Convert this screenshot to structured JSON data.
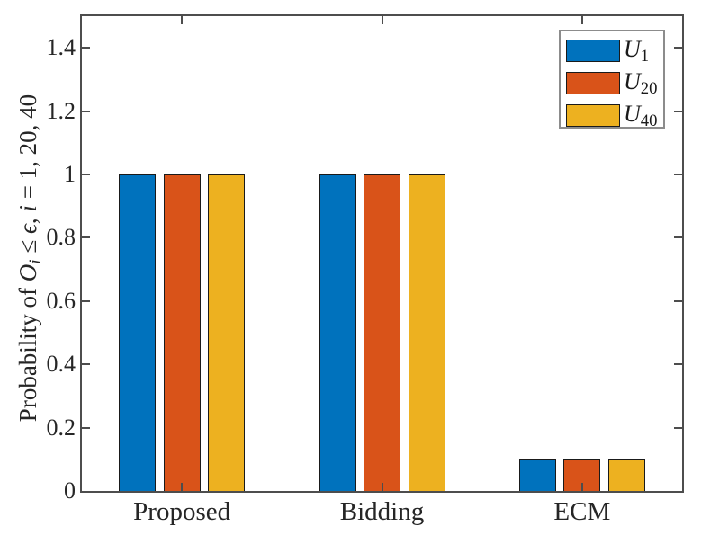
{
  "chart_data": {
    "type": "bar",
    "title": "",
    "categories": [
      "Proposed",
      "Bidding",
      "ECM"
    ],
    "series": [
      {
        "name": "U",
        "sub": "1",
        "color": "#0072BD",
        "values": [
          1,
          1,
          0.1
        ]
      },
      {
        "name": "U",
        "sub": "20",
        "color": "#D95319",
        "values": [
          1,
          1,
          0.1
        ]
      },
      {
        "name": "U",
        "sub": "40",
        "color": "#EDB120",
        "values": [
          1,
          1,
          0.1
        ]
      }
    ],
    "xlabel": "",
    "ylabel_parts": [
      {
        "t": "Probability of ",
        "i": false
      },
      {
        "t": "O",
        "i": true
      },
      {
        "t": "i",
        "i": true,
        "sub": true
      },
      {
        "t": " ≤ ",
        "i": false
      },
      {
        "t": "ϵ",
        "i": true
      },
      {
        "t": ", ",
        "i": false
      },
      {
        "t": "i",
        "i": true
      },
      {
        "t": " = 1, 20, 40",
        "i": false
      }
    ],
    "ylim": [
      0,
      1.5
    ],
    "yticks": [
      {
        "v": 0,
        "label": "0"
      },
      {
        "v": 0.2,
        "label": "0.2"
      },
      {
        "v": 0.4,
        "label": "0.4"
      },
      {
        "v": 0.6,
        "label": "0.6"
      },
      {
        "v": 0.8,
        "label": "0.8"
      },
      {
        "v": 1,
        "label": "1"
      },
      {
        "v": 1.2,
        "label": "1.2"
      },
      {
        "v": 1.4,
        "label": "1.4"
      }
    ],
    "grid": false,
    "legend_position": "top-right",
    "axis_color": "#4d4d4d",
    "bar_edge_color": "#1a1a1a"
  }
}
